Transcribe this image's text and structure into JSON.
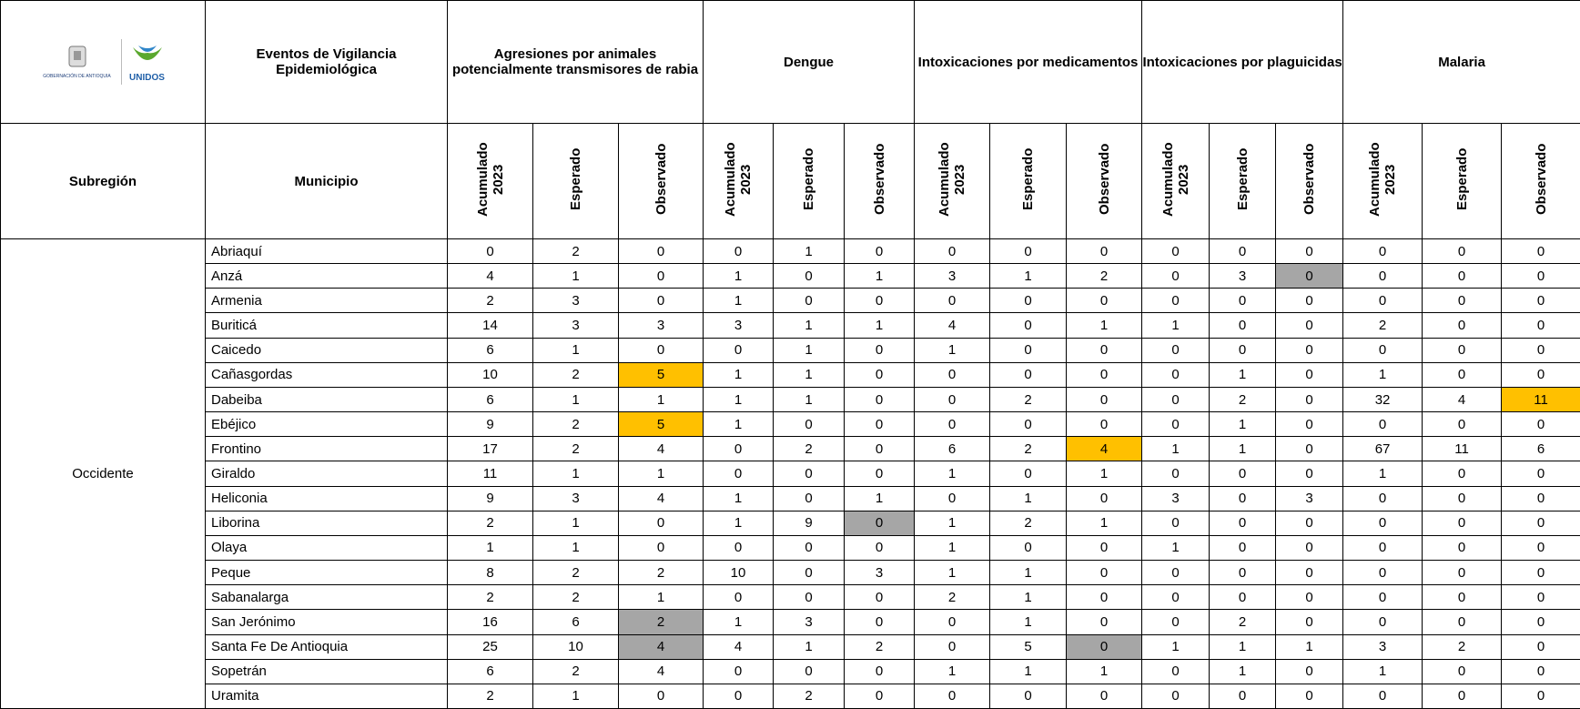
{
  "logo": {
    "org": "GOBERNACIÓN DE ANTIOQUIA",
    "brand": "UNIDOS"
  },
  "header": {
    "events_label": "Eventos de Vigilancia Epidemiológica",
    "subregion_label": "Subregión",
    "municipio_label": "Municipio",
    "groups": [
      "Agresiones por animales potencialmente transmisores de rabia",
      "Dengue",
      "Intoxicaciones por medicamentos",
      "Intoxicaciones por plaguicidas",
      "Malaria"
    ],
    "subheaders": [
      "Acumulado 2023",
      "Esperado",
      "Observado"
    ]
  },
  "table": {
    "subregion": "Occidente",
    "rows": [
      {
        "name": "Abriaquí",
        "values": [
          0,
          2,
          0,
          0,
          1,
          0,
          0,
          0,
          0,
          0,
          0,
          0,
          0,
          0,
          0
        ]
      },
      {
        "name": "Anzá",
        "values": [
          4,
          1,
          0,
          1,
          0,
          1,
          3,
          1,
          2,
          0,
          3,
          {
            "value": 0,
            "fill": "#a6a6a6"
          },
          0,
          0,
          0
        ]
      },
      {
        "name": "Armenia",
        "values": [
          2,
          3,
          0,
          1,
          0,
          0,
          0,
          0,
          0,
          0,
          0,
          0,
          0,
          0,
          0
        ]
      },
      {
        "name": "Buriticá",
        "values": [
          14,
          3,
          3,
          3,
          1,
          1,
          4,
          0,
          1,
          1,
          0,
          0,
          2,
          0,
          0
        ]
      },
      {
        "name": "Caicedo",
        "values": [
          6,
          1,
          0,
          0,
          1,
          0,
          1,
          0,
          0,
          0,
          0,
          0,
          0,
          0,
          0
        ]
      },
      {
        "name": "Cañasgordas",
        "values": [
          10,
          2,
          {
            "value": 5,
            "fill": "#ffc000"
          },
          1,
          1,
          0,
          0,
          0,
          0,
          0,
          1,
          0,
          1,
          0,
          0
        ]
      },
      {
        "name": "Dabeiba",
        "values": [
          6,
          1,
          1,
          1,
          1,
          0,
          0,
          2,
          0,
          0,
          2,
          0,
          32,
          4,
          {
            "value": 11,
            "fill": "#ffc000"
          }
        ]
      },
      {
        "name": "Ebéjico",
        "values": [
          9,
          2,
          {
            "value": 5,
            "fill": "#ffc000"
          },
          1,
          0,
          0,
          0,
          0,
          0,
          0,
          1,
          0,
          0,
          0,
          0
        ]
      },
      {
        "name": "Frontino",
        "values": [
          17,
          2,
          4,
          0,
          2,
          0,
          6,
          2,
          {
            "value": 4,
            "fill": "#ffc000"
          },
          1,
          1,
          0,
          67,
          11,
          6
        ]
      },
      {
        "name": "Giraldo",
        "values": [
          11,
          1,
          1,
          0,
          0,
          0,
          1,
          0,
          1,
          0,
          0,
          0,
          1,
          0,
          0
        ]
      },
      {
        "name": "Heliconia",
        "values": [
          9,
          3,
          4,
          1,
          0,
          1,
          0,
          1,
          0,
          3,
          0,
          3,
          0,
          0,
          0
        ]
      },
      {
        "name": "Liborina",
        "values": [
          2,
          1,
          0,
          1,
          9,
          {
            "value": 0,
            "fill": "#a6a6a6"
          },
          1,
          2,
          1,
          0,
          0,
          0,
          0,
          0,
          0
        ]
      },
      {
        "name": "Olaya",
        "values": [
          1,
          1,
          0,
          0,
          0,
          0,
          1,
          0,
          0,
          1,
          0,
          0,
          0,
          0,
          0
        ]
      },
      {
        "name": "Peque",
        "values": [
          8,
          2,
          2,
          10,
          0,
          3,
          1,
          1,
          0,
          0,
          0,
          0,
          0,
          0,
          0
        ]
      },
      {
        "name": "Sabanalarga",
        "values": [
          2,
          2,
          1,
          0,
          0,
          0,
          2,
          1,
          0,
          0,
          0,
          0,
          0,
          0,
          0
        ]
      },
      {
        "name": "San Jerónimo",
        "values": [
          16,
          6,
          {
            "value": 2,
            "fill": "#a6a6a6"
          },
          1,
          3,
          0,
          0,
          1,
          0,
          0,
          2,
          0,
          0,
          0,
          0
        ]
      },
      {
        "name": "Santa Fe De Antioquia",
        "values": [
          25,
          10,
          {
            "value": 4,
            "fill": "#a6a6a6"
          },
          4,
          1,
          2,
          0,
          5,
          {
            "value": 0,
            "fill": "#a6a6a6"
          },
          1,
          1,
          1,
          3,
          2,
          0
        ]
      },
      {
        "name": "Sopetrán",
        "values": [
          6,
          2,
          4,
          0,
          0,
          0,
          1,
          1,
          1,
          0,
          1,
          0,
          1,
          0,
          0
        ]
      },
      {
        "name": "Uramita",
        "values": [
          2,
          1,
          0,
          0,
          2,
          0,
          0,
          0,
          0,
          0,
          0,
          0,
          0,
          0,
          0
        ]
      }
    ]
  }
}
